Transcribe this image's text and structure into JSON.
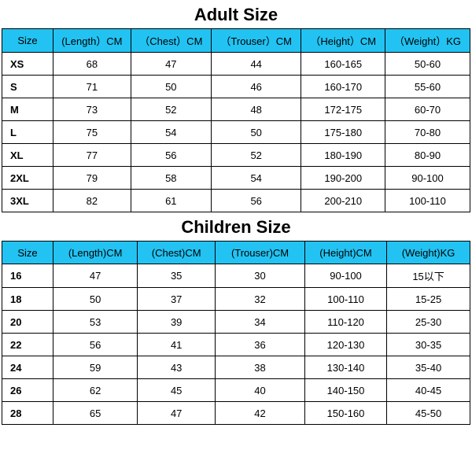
{
  "header_bg": "#22c3f2",
  "border_color": "#000000",
  "adult": {
    "title": "Adult Size",
    "columns": [
      "Size",
      "(Length）CM",
      "（Chest）CM",
      "（Trouser）CM",
      "（Height）CM",
      "（Weight）KG"
    ],
    "rows": [
      [
        "XS",
        "68",
        "47",
        "44",
        "160-165",
        "50-60"
      ],
      [
        "S",
        "71",
        "50",
        "46",
        "160-170",
        "55-60"
      ],
      [
        "M",
        "73",
        "52",
        "48",
        "172-175",
        "60-70"
      ],
      [
        "L",
        "75",
        "54",
        "50",
        "175-180",
        "70-80"
      ],
      [
        "XL",
        "77",
        "56",
        "52",
        "180-190",
        "80-90"
      ],
      [
        "2XL",
        "79",
        "58",
        "54",
        "190-200",
        "90-100"
      ],
      [
        "3XL",
        "82",
        "61",
        "56",
        "200-210",
        "100-110"
      ]
    ]
  },
  "children": {
    "title": "Children Size",
    "columns": [
      "Size",
      "(Length)CM",
      "(Chest)CM",
      "(Trouser)CM",
      "(Height)CM",
      "(Weight)KG"
    ],
    "rows": [
      [
        "16",
        "47",
        "35",
        "30",
        "90-100",
        "15以下"
      ],
      [
        "18",
        "50",
        "37",
        "32",
        "100-110",
        "15-25"
      ],
      [
        "20",
        "53",
        "39",
        "34",
        "110-120",
        "25-30"
      ],
      [
        "22",
        "56",
        "41",
        "36",
        "120-130",
        "30-35"
      ],
      [
        "24",
        "59",
        "43",
        "38",
        "130-140",
        "35-40"
      ],
      [
        "26",
        "62",
        "45",
        "40",
        "140-150",
        "40-45"
      ],
      [
        "28",
        "65",
        "47",
        "42",
        "150-160",
        "45-50"
      ]
    ]
  }
}
